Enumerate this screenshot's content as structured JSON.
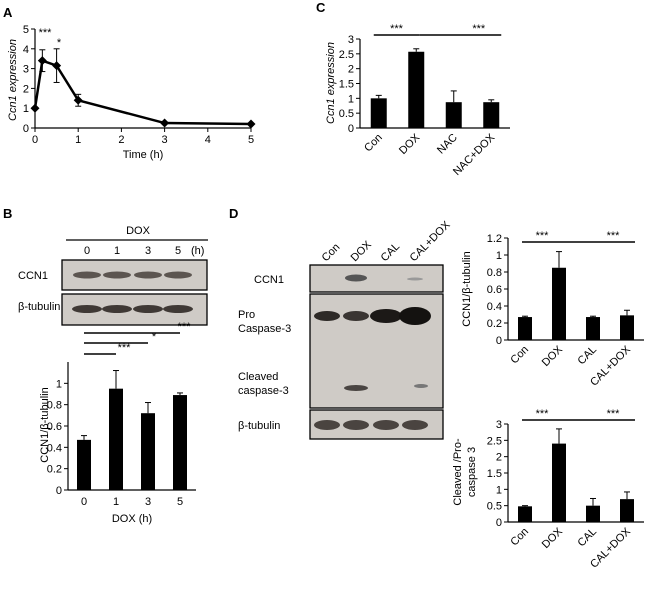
{
  "panel_labels": [
    "A",
    "B",
    "C",
    "D"
  ],
  "chart_data": [
    {
      "id": "A",
      "type": "line",
      "x": [
        0,
        0.17,
        0.5,
        1,
        3,
        5
      ],
      "y": [
        1,
        3.4,
        3.15,
        1.4,
        0.25,
        0.2
      ],
      "err": [
        0,
        0.55,
        0.85,
        0.3,
        0.05,
        0.03
      ],
      "xlim": [
        0,
        5
      ],
      "ylim": [
        0,
        5
      ],
      "xticks": [
        "0",
        "1",
        "2",
        "3",
        "4",
        "5"
      ],
      "yticks": [
        "0",
        "1",
        "2",
        "3",
        "4",
        "5"
      ],
      "xlabel": "Time (h)",
      "ylabel": "Ccn1 expression",
      "sig": [
        "***",
        "*"
      ]
    },
    {
      "id": "B",
      "type": "bar",
      "categories": [
        "0",
        "1",
        "3",
        "5"
      ],
      "values": [
        0.47,
        0.95,
        0.72,
        0.89
      ],
      "err": [
        0.04,
        0.17,
        0.1,
        0.02
      ],
      "ylim": [
        0,
        1.2
      ],
      "yticks": [
        "0",
        "0.2",
        "0.4",
        "0.6",
        "0.8",
        "1"
      ],
      "xlabel": "DOX (h)",
      "ylabel": "CCN1/β-tubulin",
      "sig": [
        "***",
        "*",
        "***"
      ]
    },
    {
      "id": "C",
      "type": "bar",
      "categories": [
        "Con",
        "DOX",
        "NAC",
        "NAC+DOX"
      ],
      "values": [
        1,
        2.57,
        0.87,
        0.87
      ],
      "err": [
        0.1,
        0.1,
        0.38,
        0.08
      ],
      "ylim": [
        0,
        3
      ],
      "yticks": [
        "0",
        "0.5",
        "1",
        "1.5",
        "2",
        "2.5",
        "3"
      ],
      "ylabel": "Ccn1 expression",
      "sig": [
        "***",
        "***"
      ]
    },
    {
      "id": "D1",
      "type": "bar",
      "categories": [
        "Con",
        "DOX",
        "CAL",
        "CAL+DOX"
      ],
      "values": [
        0.27,
        0.85,
        0.27,
        0.29
      ],
      "err": [
        0.01,
        0.19,
        0.01,
        0.06
      ],
      "ylim": [
        0,
        1.2
      ],
      "yticks": [
        "0",
        "0.2",
        "0.4",
        "0.6",
        "0.8",
        "1",
        "1.2"
      ],
      "ylabel": "CCN1/β-tubulin",
      "sig": [
        "***",
        "***"
      ]
    },
    {
      "id": "D2",
      "type": "bar",
      "categories": [
        "Con",
        "DOX",
        "CAL",
        "CAL+DOX"
      ],
      "values": [
        0.48,
        2.4,
        0.5,
        0.7
      ],
      "err": [
        0.02,
        0.45,
        0.22,
        0.22
      ],
      "ylim": [
        0,
        3
      ],
      "yticks": [
        "0",
        "0.5",
        "1",
        "1.5",
        "2",
        "2.5",
        "3"
      ],
      "ylabel_lines": [
        "Cleaved /Pro-",
        "caspase 3"
      ],
      "sig": [
        "***",
        "***"
      ]
    }
  ],
  "blot_B": {
    "treatment": "DOX",
    "lanes": [
      "0",
      "1",
      "3",
      "5"
    ],
    "unit": "(h)",
    "rows": [
      "CCN1",
      "β-tubulin"
    ]
  },
  "blot_D": {
    "lanes": [
      "Con",
      "DOX",
      "CAL",
      "CAL+DOX"
    ],
    "rows": {
      "ccn1": "CCN1",
      "pro": [
        "Pro",
        "Caspase-3"
      ],
      "cleaved": [
        "Cleaved",
        "caspase-3"
      ],
      "tubulin": "β-tubulin"
    }
  },
  "colors": {
    "bar": "#000000",
    "blot_bg": "#cfcbc6",
    "band": "#4a4440"
  }
}
